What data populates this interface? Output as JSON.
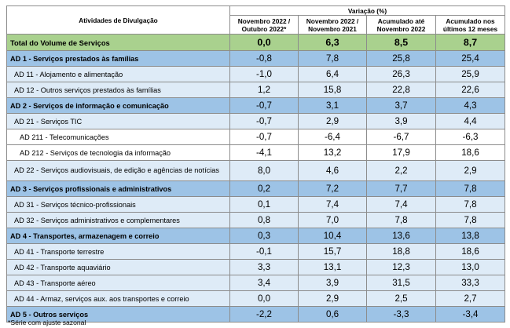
{
  "table": {
    "header": {
      "activity": "Atividades de Divulgação",
      "group": "Variação (%)",
      "columns": [
        [
          "Novembro 2022 /",
          "Outubro 2022*"
        ],
        [
          "Novembro 2022 /",
          "Novembro 2021"
        ],
        [
          "Acumulado até",
          "Novembro 2022"
        ],
        [
          "Acumulado nos",
          "últimos 12 meses"
        ]
      ]
    },
    "rows": [
      {
        "level": 0,
        "label": "Total do Volume de Serviços",
        "values": [
          "0,0",
          "6,3",
          "8,5",
          "8,7"
        ]
      },
      {
        "level": 1,
        "label": "AD 1 - Serviços prestados às famílias",
        "values": [
          "-0,8",
          "7,8",
          "25,8",
          "25,4"
        ]
      },
      {
        "level": 2,
        "label": "AD 11 - Alojamento e alimentação",
        "values": [
          "-1,0",
          "6,4",
          "26,3",
          "25,9"
        ]
      },
      {
        "level": 2,
        "label": "AD 12 - Outros serviços prestados às famílias",
        "values": [
          "1,2",
          "15,8",
          "22,8",
          "22,6"
        ]
      },
      {
        "level": 1,
        "label": "AD 2 - Serviços de informação e comunicação",
        "values": [
          "-0,7",
          "3,1",
          "3,7",
          "4,3"
        ]
      },
      {
        "level": 2,
        "label": "AD 21 - Serviços TIC",
        "values": [
          "-0,7",
          "2,9",
          "3,9",
          "4,4"
        ]
      },
      {
        "level": 3,
        "label": "AD 211 - Telecomunicações",
        "values": [
          "-0,7",
          "-6,4",
          "-6,7",
          "-6,3"
        ]
      },
      {
        "level": 3,
        "label": "AD 212 - Serviços de tecnologia da informação",
        "values": [
          "-4,1",
          "13,2",
          "17,9",
          "18,6"
        ]
      },
      {
        "level": 2,
        "label": "AD 22 - Serviços audiovisuais, de edição e agências de notícias",
        "values": [
          "8,0",
          "4,6",
          "2,2",
          "2,9"
        ],
        "tall": true
      },
      {
        "level": 1,
        "label": "AD 3 - Serviços profissionais e administrativos",
        "values": [
          "0,2",
          "7,2",
          "7,7",
          "7,8"
        ]
      },
      {
        "level": 2,
        "label": "AD 31 - Serviços técnico-profissionais",
        "values": [
          "0,1",
          "7,4",
          "7,4",
          "7,8"
        ]
      },
      {
        "level": 2,
        "label": "AD 32 - Serviços administrativos e complementares",
        "values": [
          "0,8",
          "7,0",
          "7,8",
          "7,8"
        ]
      },
      {
        "level": 1,
        "label": "AD 4 - Transportes, armazenagem e correio",
        "values": [
          "0,3",
          "10,4",
          "13,6",
          "13,8"
        ]
      },
      {
        "level": 2,
        "label": "AD 41 - Transporte terrestre",
        "values": [
          "-0,1",
          "15,7",
          "18,8",
          "18,6"
        ]
      },
      {
        "level": 2,
        "label": "AD 42 - Transporte aquaviário",
        "values": [
          "3,3",
          "13,1",
          "12,3",
          "13,0"
        ]
      },
      {
        "level": 2,
        "label": "AD 43 - Transporte aéreo",
        "values": [
          "3,4",
          "3,9",
          "31,5",
          "33,3"
        ]
      },
      {
        "level": 2,
        "label": "AD 44 - Armaz, serviços aux. aos transportes e correio",
        "values": [
          "0,0",
          "2,9",
          "2,5",
          "2,7"
        ]
      },
      {
        "level": 1,
        "label": "AD 5 - Outros serviços",
        "values": [
          "-2,2",
          "0,6",
          "-3,3",
          "-3,4"
        ]
      }
    ]
  },
  "footnote": "*Série com ajuste sazonal",
  "colors": {
    "total_row": "#a9d18e",
    "level1_row": "#9dc3e6",
    "level2_row": "#deebf7",
    "grid": "#8c8c8c"
  }
}
